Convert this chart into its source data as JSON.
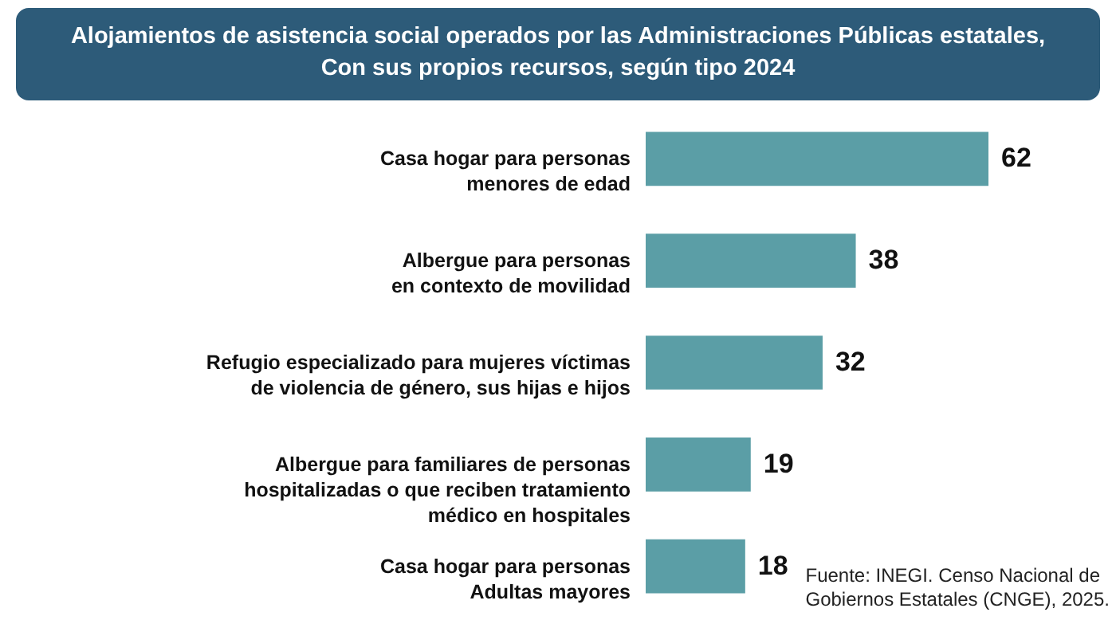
{
  "chart_data": {
    "type": "bar",
    "orientation": "horizontal",
    "title": "Alojamientos de asistencia social operados por las Administraciones Públicas estatales,\nCon sus propios recursos, según tipo 2024",
    "categories": [
      "Casa hogar para personas\nmenores de edad",
      "Albergue para personas\nen contexto de movilidad",
      "Refugio especializado para mujeres víctimas\nde violencia de género, sus hijas e hijos",
      "Albergue para familiares de personas\nhospitalizadas o que reciben tratamiento\nmédico en hospitales",
      "Casa hogar para personas\nAdultas mayores"
    ],
    "values": [
      62,
      38,
      32,
      19,
      18
    ],
    "color": "#5b9ea6",
    "data_labels": true,
    "annotations": [
      "Fuente: INEGI. Censo Nacional de\nGobiernos Estatales (CNGE), 2025."
    ]
  }
}
